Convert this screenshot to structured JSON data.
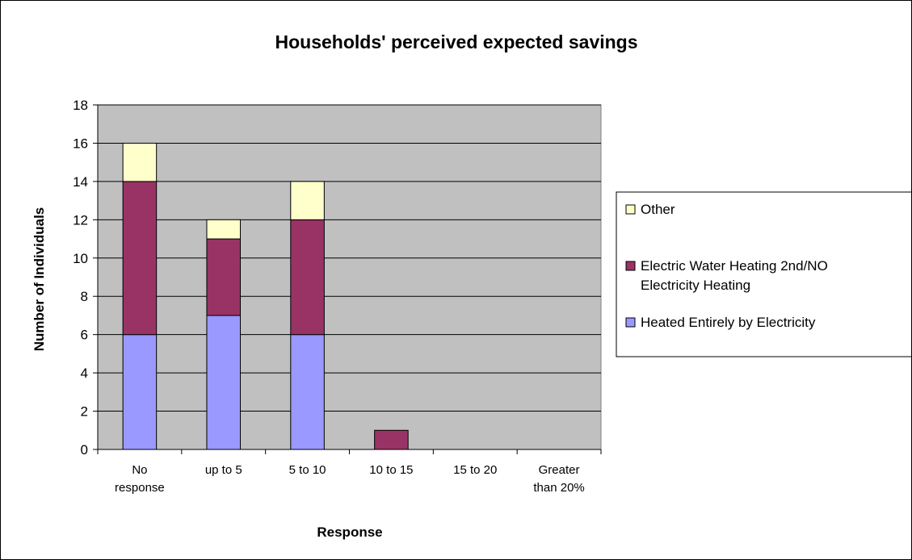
{
  "chart_data": {
    "type": "bar",
    "stacked": true,
    "title": "Households' perceived expected savings",
    "xlabel": "Response",
    "ylabel": "Number of Individuals",
    "categories": [
      [
        "No",
        "response"
      ],
      [
        "up to 5"
      ],
      [
        "5 to 10"
      ],
      [
        "10 to 15"
      ],
      [
        "15 to 20"
      ],
      [
        "Greater",
        "than 20%"
      ]
    ],
    "ylim": [
      0,
      18
    ],
    "yticks": [
      0,
      2,
      4,
      6,
      8,
      10,
      12,
      14,
      16,
      18
    ],
    "grid": true,
    "legend_position": "right",
    "series": [
      {
        "name": "Heated Entirely by Electricity",
        "color": "#9999ff",
        "values": [
          6,
          7,
          6,
          0,
          0,
          0
        ]
      },
      {
        "name": "Electric Water Heating 2nd/NO Electricity Heating",
        "color": "#993366",
        "values": [
          8,
          4,
          6,
          1,
          0,
          0
        ]
      },
      {
        "name": "Other",
        "color": "#ffffcc",
        "values": [
          2,
          1,
          2,
          0,
          0,
          0
        ]
      }
    ],
    "legend_order": [
      {
        "lines": [
          "Other"
        ],
        "color": "#ffffcc"
      },
      {
        "lines": [
          "Electric Water Heating 2nd/NO",
          "Electricity Heating"
        ],
        "color": "#993366"
      },
      {
        "lines": [
          "Heated Entirely by Electricity"
        ],
        "color": "#9999ff"
      }
    ],
    "plot_background": "#c0c0c0"
  }
}
